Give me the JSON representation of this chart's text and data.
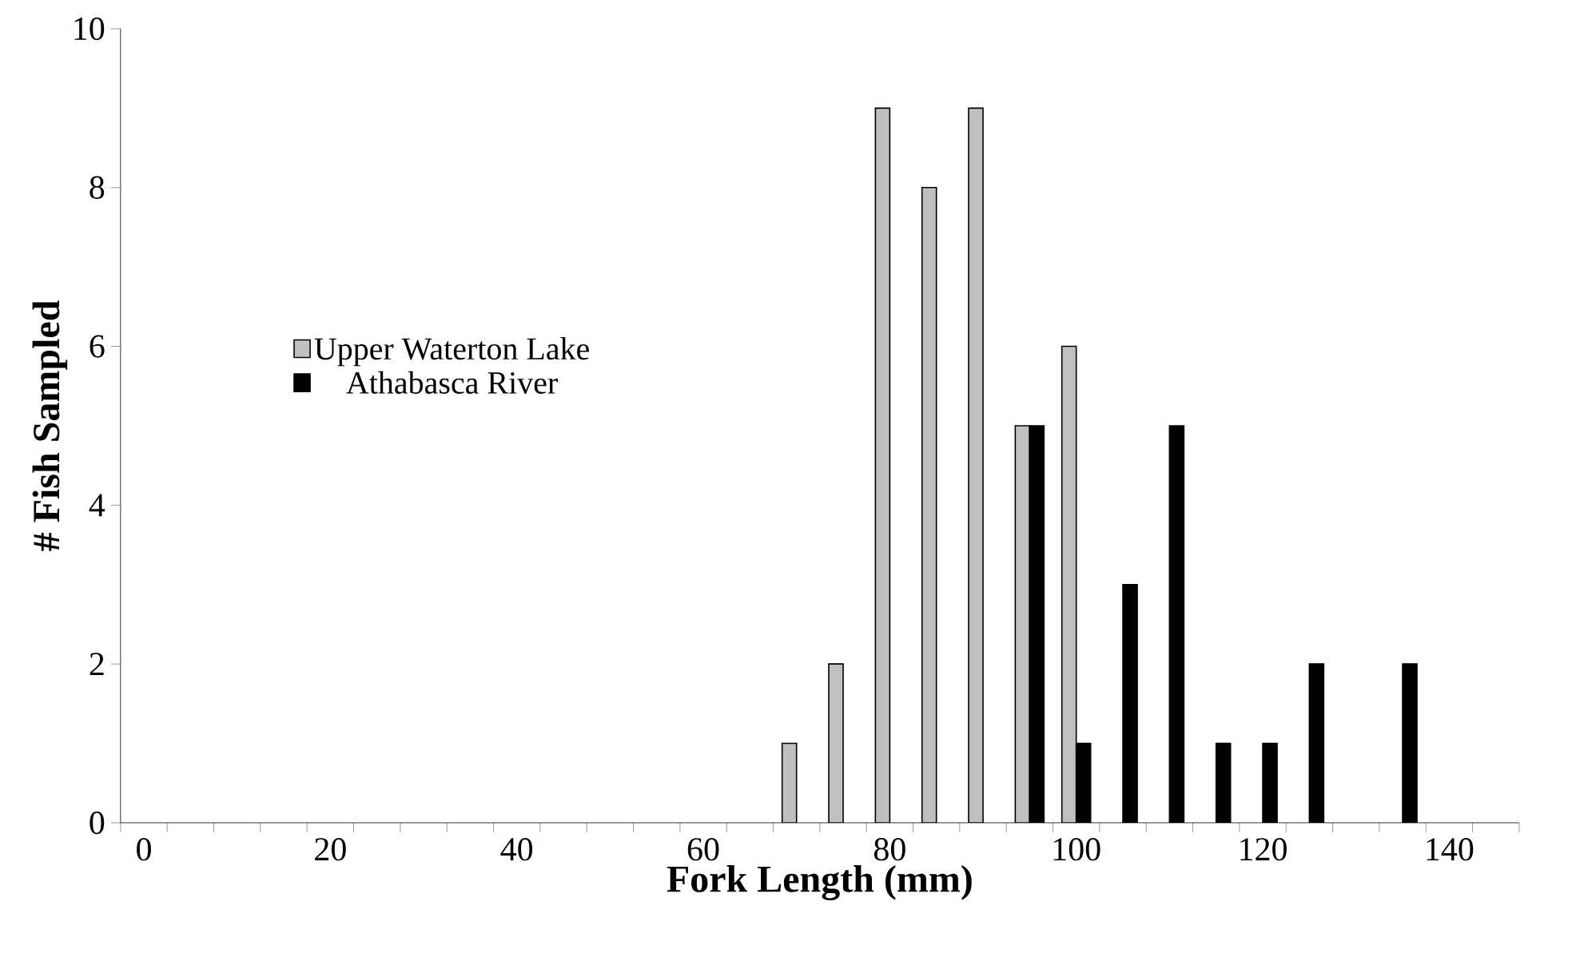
{
  "chart_data": {
    "type": "bar",
    "xlabel": "Fork Length (mm)",
    "ylabel": "# Fish Sampled",
    "categories": [
      "0",
      null,
      null,
      null,
      "20",
      null,
      null,
      null,
      "40",
      null,
      null,
      null,
      "60",
      null,
      null,
      null,
      "80",
      null,
      null,
      null,
      "100",
      null,
      null,
      null,
      "120",
      null,
      null,
      null,
      "140",
      null
    ],
    "series": [
      {
        "name": "Upper Waterton Lake",
        "color": "#c0c0c0",
        "values": [
          0,
          0,
          0,
          0,
          0,
          0,
          0,
          0,
          0,
          0,
          0,
          0,
          0,
          0,
          1,
          2,
          9,
          8,
          9,
          5,
          6,
          0,
          0,
          0,
          0,
          0,
          0,
          0,
          0,
          0
        ]
      },
      {
        "name": "Athabasca River",
        "color": "#000000",
        "values": [
          0,
          0,
          0,
          0,
          0,
          0,
          0,
          0,
          0,
          0,
          0,
          0,
          0,
          0,
          0,
          0,
          0,
          0,
          0,
          5,
          1,
          3,
          5,
          1,
          1,
          2,
          0,
          2,
          0,
          0
        ]
      }
    ],
    "ylim": [
      0,
      10
    ],
    "yticks": [
      0,
      2,
      4,
      6,
      8,
      10
    ],
    "legend": "left"
  }
}
